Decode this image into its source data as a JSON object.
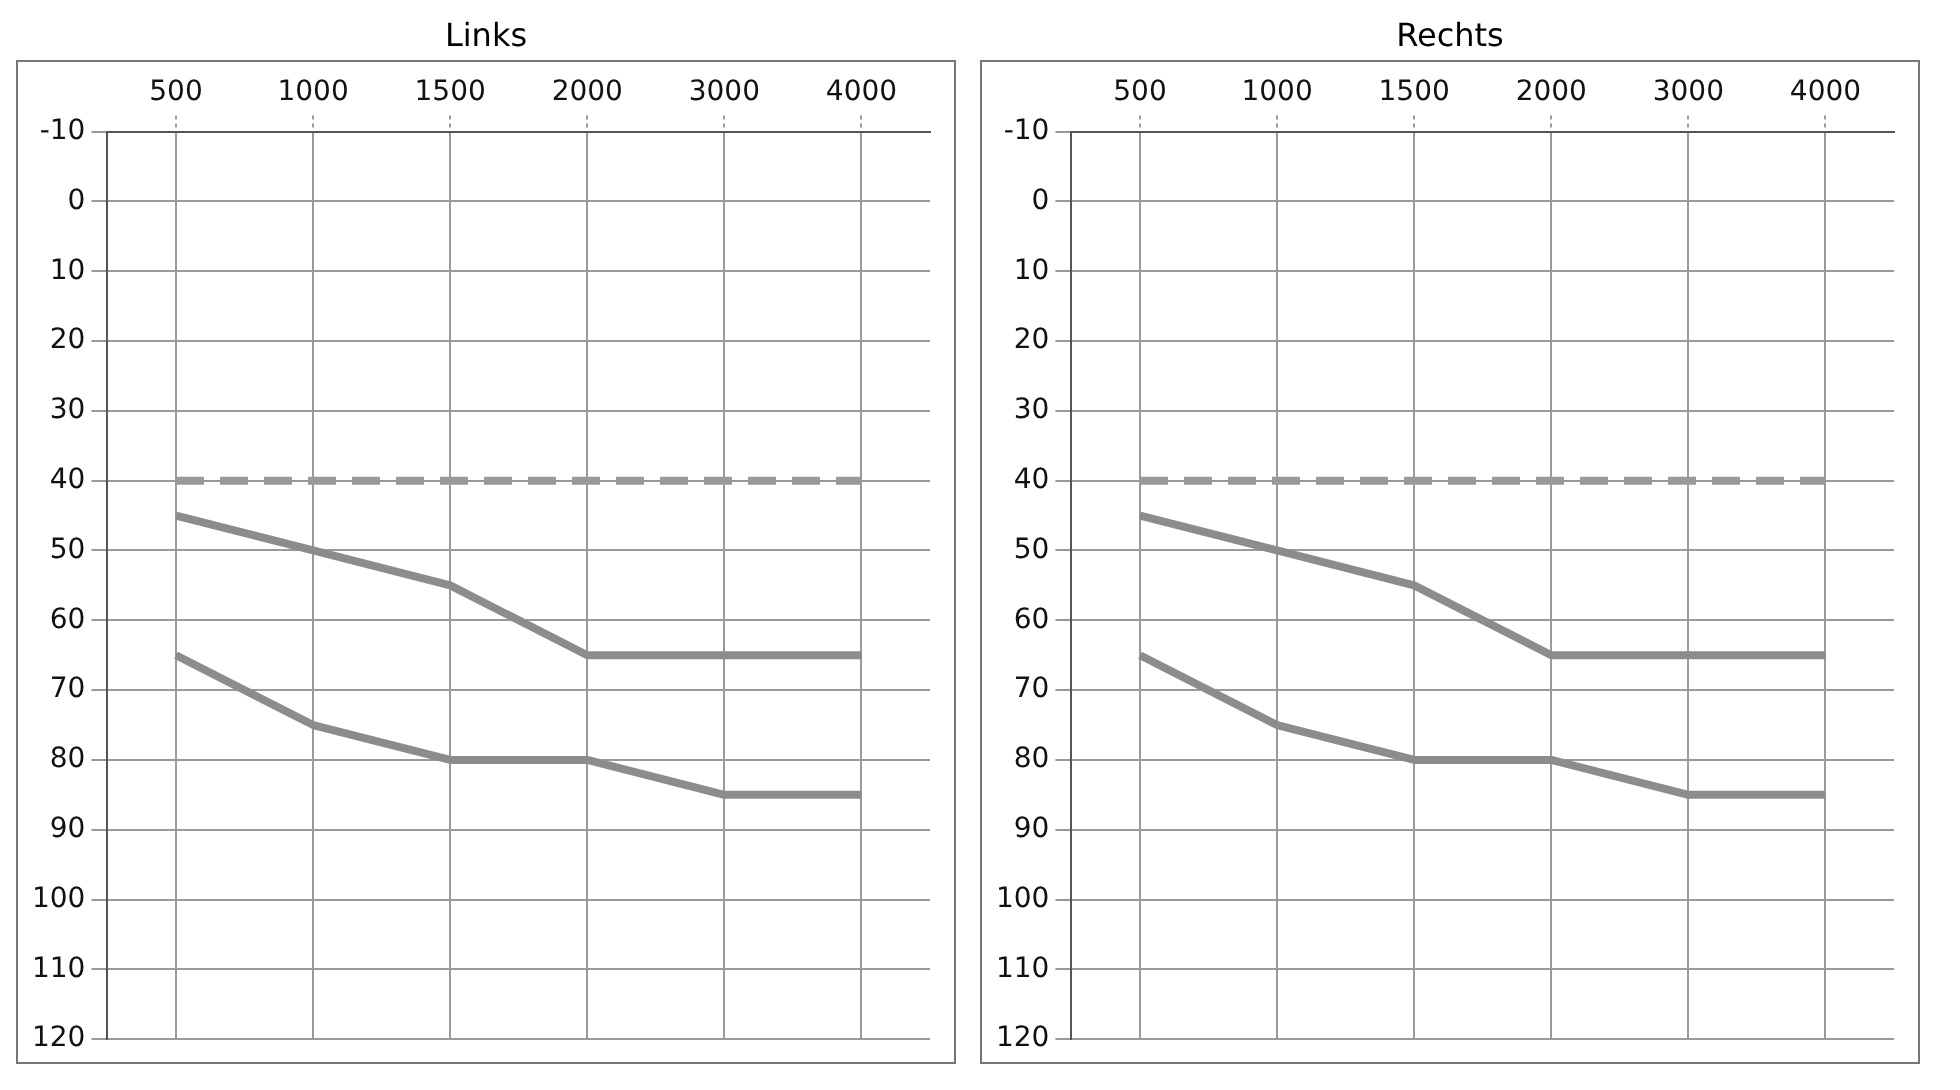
{
  "chart_data": [
    {
      "type": "line",
      "title": "Links",
      "categories": [
        "500",
        "1000",
        "1500",
        "2000",
        "3000",
        "4000"
      ],
      "series": [
        {
          "color": "#999999",
          "values": [
            40,
            40,
            40,
            40,
            40,
            40
          ],
          "line_style": "dashed"
        },
        {
          "color": "#8c8c8c",
          "values": [
            45,
            50,
            55,
            65,
            65,
            65
          ]
        },
        {
          "color": "#8c8c8c",
          "values": [
            65,
            75,
            80,
            80,
            85,
            85
          ]
        }
      ],
      "ylim": [
        120,
        -10
      ],
      "yticks": [
        -10,
        0,
        10,
        20,
        30,
        40,
        50,
        60,
        70,
        80,
        90,
        100,
        110,
        120
      ],
      "grid": true,
      "legend": false,
      "marker": "none",
      "line_style": "solid"
    },
    {
      "type": "line",
      "title": "Rechts",
      "categories": [
        "500",
        "1000",
        "1500",
        "2000",
        "3000",
        "4000"
      ],
      "series": [
        {
          "color": "#999999",
          "values": [
            40,
            40,
            40,
            40,
            40,
            40
          ],
          "line_style": "dashed"
        },
        {
          "color": "#8c8c8c",
          "values": [
            45,
            50,
            55,
            65,
            65,
            65
          ]
        },
        {
          "color": "#8c8c8c",
          "values": [
            65,
            75,
            80,
            80,
            85,
            85
          ]
        }
      ],
      "ylim": [
        120,
        -10
      ],
      "yticks": [
        -10,
        0,
        10,
        20,
        30,
        40,
        50,
        60,
        70,
        80,
        90,
        100,
        110,
        120
      ],
      "grid": true,
      "legend": false,
      "marker": "none",
      "line_style": "solid"
    }
  ]
}
